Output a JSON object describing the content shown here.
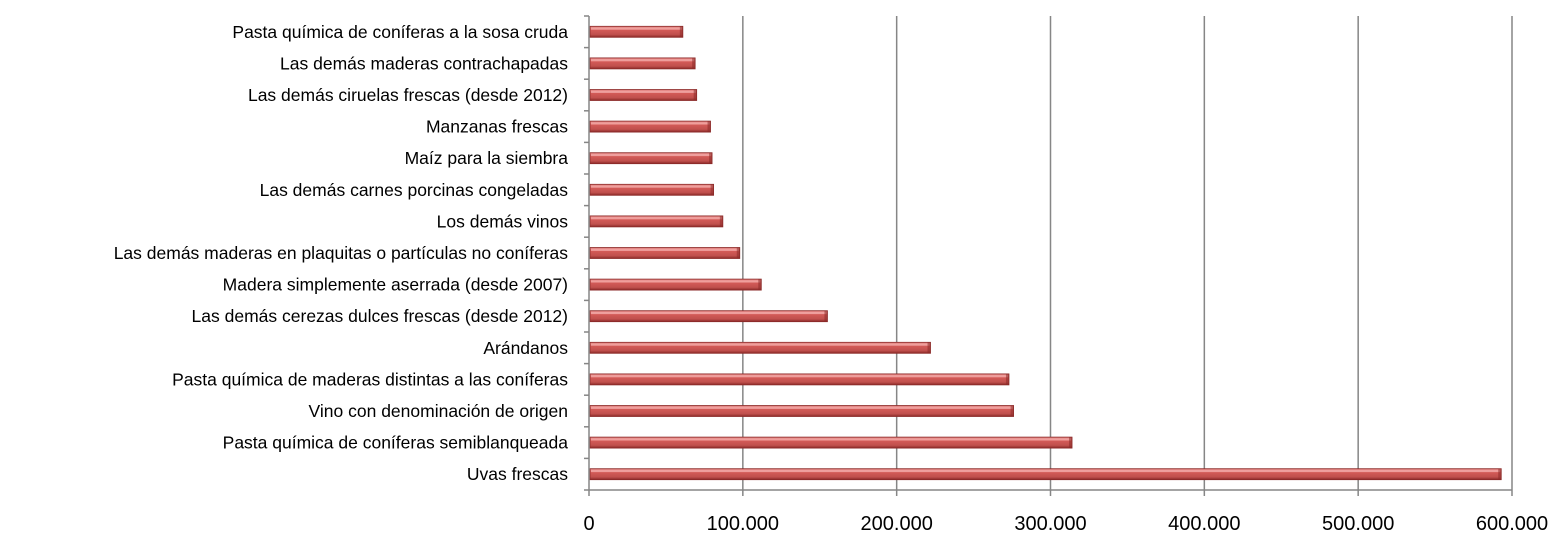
{
  "chart_data": {
    "type": "bar",
    "orientation": "horizontal",
    "categories": [
      "Pasta química de coníferas a la sosa cruda",
      "Las demás maderas contrachapadas",
      "Las demás ciruelas frescas (desde 2012)",
      "Manzanas frescas",
      "Maíz para la siembra ",
      "Las demás carnes porcinas congeladas ",
      "Los demás vinos",
      "Las demás maderas en plaquitas o partículas no coníferas",
      "Madera simplemente aserrada (desde 2007)",
      "Las demás cerezas dulces frescas (desde 2012)",
      "Arándanos ",
      "Pasta química de maderas distintas a las coníferas",
      "Vino con denominación de origen",
      "Pasta química de coníferas  semiblanqueada ",
      "Uvas frescas "
    ],
    "values": [
      61000,
      69000,
      70000,
      79000,
      80000,
      81000,
      87000,
      98000,
      112000,
      155000,
      222000,
      273000,
      276000,
      314000,
      593000
    ],
    "xlim": [
      0,
      600000
    ],
    "xticks": [
      0,
      100000,
      200000,
      300000,
      400000,
      500000,
      600000
    ],
    "xtick_labels": [
      "0",
      "100.000",
      "200.000",
      "300.000",
      "400.000",
      "500.000",
      "600.000"
    ],
    "title": "",
    "xlabel": "",
    "ylabel": "",
    "grid": "vertical major gridlines",
    "legend": "none",
    "bar_color": "#c0504d",
    "bar_highlight": "#f2a8a6",
    "bar_shadow": "#8b2a28",
    "grid_color": "#868686",
    "axis_color": "#868686"
  }
}
